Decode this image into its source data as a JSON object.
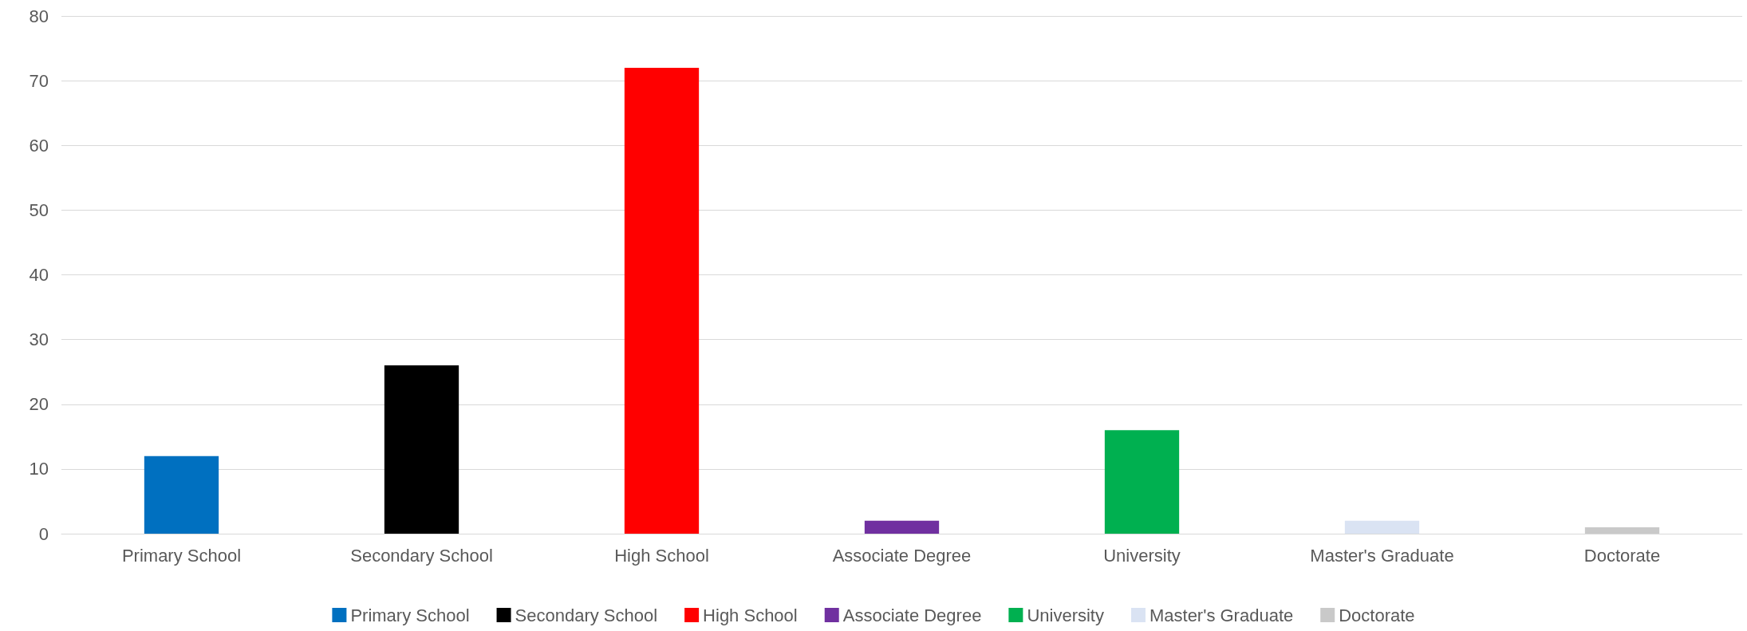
{
  "chart_data": {
    "type": "bar",
    "categories": [
      "Primary School",
      "Secondary School",
      "High School",
      "Associate Degree",
      "University",
      "Master's Graduate",
      "Doctorate"
    ],
    "series": [
      {
        "name": "Primary School",
        "color": "#0070c0",
        "values": [
          12,
          null,
          null,
          null,
          null,
          null,
          null
        ]
      },
      {
        "name": "Secondary School",
        "color": "#000000",
        "values": [
          null,
          26,
          null,
          null,
          null,
          null,
          null
        ]
      },
      {
        "name": "High School",
        "color": "#ff0000",
        "values": [
          null,
          null,
          72,
          null,
          null,
          null,
          null
        ]
      },
      {
        "name": "Associate Degree",
        "color": "#7030a0",
        "values": [
          null,
          null,
          null,
          2,
          null,
          null,
          null
        ]
      },
      {
        "name": "University",
        "color": "#00b050",
        "values": [
          null,
          null,
          null,
          null,
          16,
          null,
          null
        ]
      },
      {
        "name": "Master's Graduate",
        "color": "#dae3f3",
        "values": [
          null,
          null,
          null,
          null,
          null,
          2,
          null
        ]
      },
      {
        "name": "Doctorate",
        "color": "#c9c9c9",
        "values": [
          null,
          null,
          null,
          null,
          null,
          null,
          1
        ]
      }
    ],
    "ylim": [
      0,
      80
    ],
    "yticks": [
      0,
      10,
      20,
      30,
      40,
      50,
      60,
      70,
      80
    ],
    "grid": "y",
    "legend": "bottom"
  }
}
